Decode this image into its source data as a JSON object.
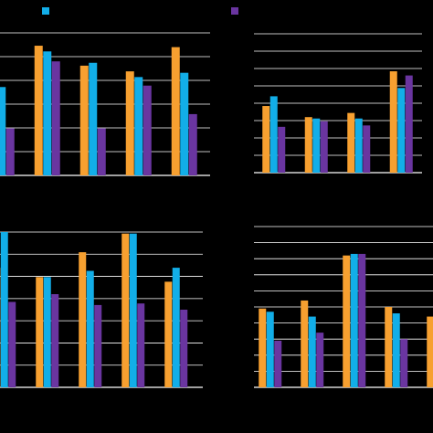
{
  "colors": {
    "background": "#000000",
    "grid": "#ffffff",
    "series": [
      "#f7a030",
      "#12aee8",
      "#6a35a0"
    ]
  },
  "legend": {
    "swatches": [
      "#12aee8",
      "#6a35a0"
    ]
  },
  "chart_data": [
    {
      "type": "bar",
      "panel": "top-left",
      "categories": [
        "",
        "",
        "",
        "",
        ""
      ],
      "grid": true,
      "ylim": [
        0,
        100
      ],
      "series": [
        {
          "values": [
            null,
            91,
            77,
            73,
            90
          ]
        },
        {
          "values": [
            62,
            87,
            79,
            69,
            72
          ]
        },
        {
          "values": [
            33,
            80,
            33,
            63,
            43
          ]
        }
      ]
    },
    {
      "type": "bar",
      "panel": "top-right",
      "categories": [
        "",
        "",
        "",
        ""
      ],
      "grid": true,
      "ylim": [
        0,
        100
      ],
      "series": [
        {
          "values": [
            48,
            40,
            43,
            73
          ]
        },
        {
          "values": [
            55,
            39,
            39,
            61
          ]
        },
        {
          "values": [
            33,
            37,
            34,
            70
          ]
        }
      ]
    },
    {
      "type": "bar",
      "panel": "bottom-left",
      "categories": [
        "",
        "",
        "",
        "",
        ""
      ],
      "grid": true,
      "ylim": [
        0,
        100
      ],
      "series": [
        {
          "values": [
            77,
            71,
            87,
            99,
            68
          ]
        },
        {
          "values": [
            100,
            71,
            75,
            99,
            77
          ]
        },
        {
          "values": [
            55,
            60,
            53,
            54,
            50
          ]
        }
      ]
    },
    {
      "type": "bar",
      "panel": "bottom-right",
      "categories": [
        "",
        "",
        "",
        "",
        ""
      ],
      "grid": true,
      "ylim": [
        0,
        100
      ],
      "series": [
        {
          "values": [
            49,
            54,
            82,
            50,
            44
          ]
        },
        {
          "values": [
            47,
            44,
            83,
            46,
            null
          ]
        },
        {
          "values": [
            29,
            34,
            83,
            30,
            null
          ]
        }
      ]
    }
  ]
}
